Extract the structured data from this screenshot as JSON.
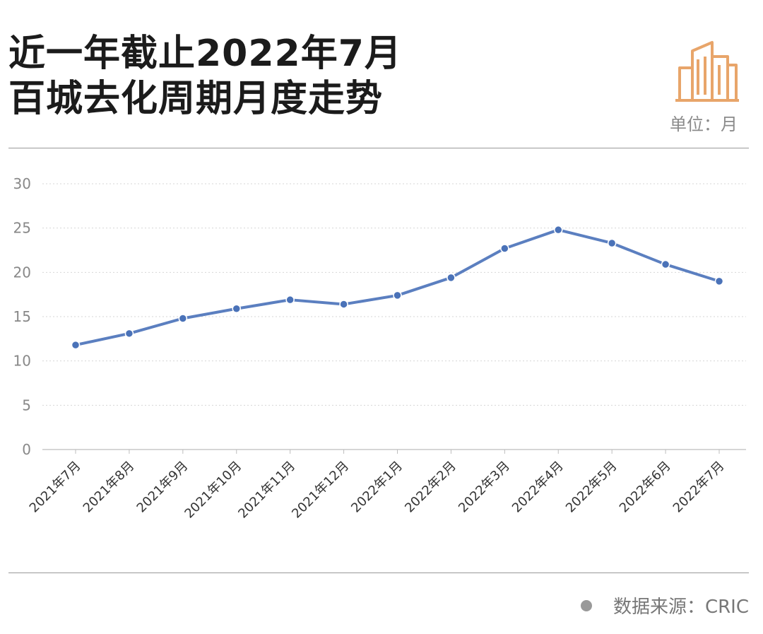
{
  "header": {
    "title_line1": "近一年截止2022年7月",
    "title_line2": "百城去化周期月度走势",
    "unit_label": "单位：月"
  },
  "footer": {
    "source": "数据来源：CRIC"
  },
  "colors": {
    "line": "#5b7fc0",
    "marker": "#4a72b8",
    "icon": "#e8a56a"
  },
  "chart_data": {
    "type": "line",
    "title": "近一年截止2022年7月 百城去化周期月度走势",
    "xlabel": "",
    "ylabel": "",
    "unit": "月",
    "ylim": [
      0,
      30
    ],
    "yticks": [
      0,
      5,
      10,
      15,
      20,
      25,
      30
    ],
    "grid": true,
    "categories": [
      "2021年7月",
      "2021年8月",
      "2021年9月",
      "2021年10月",
      "2021年11月",
      "2021年12月",
      "2022年1月",
      "2022年2月",
      "2022年3月",
      "2022年4月",
      "2022年5月",
      "2022年6月",
      "2022年7月"
    ],
    "series": [
      {
        "values": [
          11.8,
          13.1,
          14.8,
          15.9,
          16.9,
          16.4,
          17.4,
          19.4,
          22.7,
          24.8,
          23.3,
          20.9,
          19.0
        ]
      }
    ]
  }
}
